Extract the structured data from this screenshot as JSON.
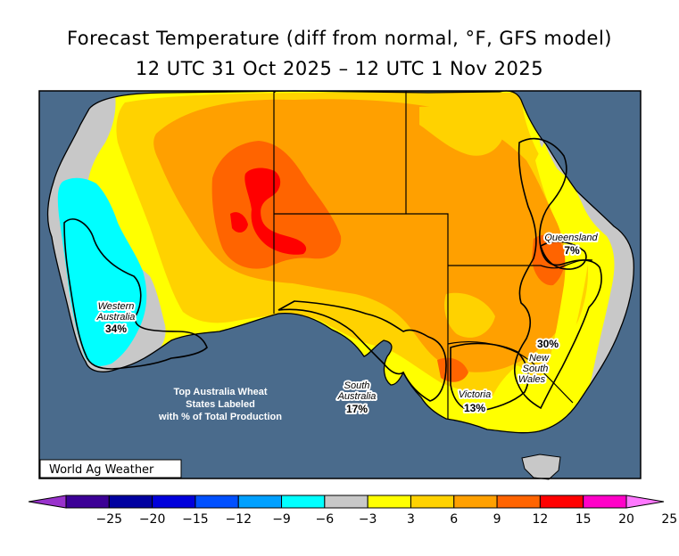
{
  "title": "Forecast Temperature (diff from normal, °F, GFS model)",
  "subtitle": "12 UTC 31 Oct 2025 – 12 UTC 1 Nov 2025",
  "credit": "World Ag Weather",
  "note": {
    "line1": "Top Australia Wheat",
    "line2": "States Labeled",
    "line3": "with % of Total Production"
  },
  "states": [
    {
      "name_line1": "Western",
      "name_line2": "Australia",
      "share": "34%"
    },
    {
      "name_line1": "South",
      "name_line2": "Australia",
      "share": "17%"
    },
    {
      "name_line1": "Victoria",
      "name_line2": "",
      "share": "13%"
    },
    {
      "name_line1": "New",
      "name_line2": "South",
      "name_line3": "Wales",
      "share": "30%"
    },
    {
      "name_line1": "Queensland",
      "name_line2": "",
      "share": "7%"
    }
  ],
  "colorbar": {
    "labels": [
      "−25",
      "−20",
      "−15",
      "−12",
      "−9",
      "−6",
      "−3",
      "3",
      "6",
      "9",
      "12",
      "15",
      "20",
      "25"
    ],
    "colors": [
      "#9932cc",
      "#3c0096",
      "#0000a0",
      "#0000dc",
      "#0050ff",
      "#00a0ff",
      "#00ffff",
      "#c8c8c8",
      "#ffff00",
      "#ffd200",
      "#ffa000",
      "#ff6400",
      "#ff0000",
      "#ff00c8",
      "#ff78ff"
    ]
  },
  "colors": {
    "ocean": "#4a6b8c",
    "gray": "#c8c8c8",
    "cyan": "#00ffff",
    "yellow": "#ffff00",
    "gold": "#ffd200",
    "orange": "#ffa000",
    "dark_orange": "#ff6400",
    "red": "#ff0000"
  }
}
